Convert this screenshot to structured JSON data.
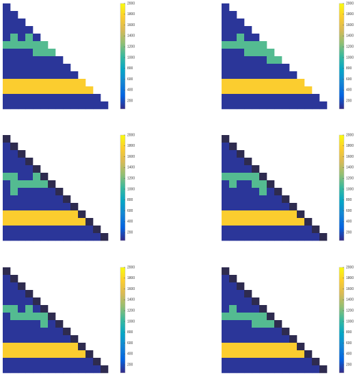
{
  "chart_data": [
    {
      "type": "heatmap",
      "clim": [
        50,
        2000
      ],
      "colorbar_ticks": [
        200,
        400,
        600,
        800,
        1000,
        1200,
        1400,
        1600,
        1800,
        2000
      ],
      "colormap": [
        "#352a87",
        "#0363e1",
        "#1485d4",
        "#06a7c6",
        "#38b99e",
        "#92bf73",
        "#d9ba56",
        "#fcce2e",
        "#f9fb0e"
      ],
      "values": [
        [
          100
        ],
        [
          100,
          100
        ],
        [
          100,
          100,
          100
        ],
        [
          100,
          100,
          100,
          100
        ],
        [
          100,
          1100,
          100,
          1100,
          100
        ],
        [
          1100,
          1100,
          1100,
          1100,
          1100,
          1100
        ],
        [
          100,
          100,
          100,
          100,
          1100,
          1100,
          1100
        ],
        [
          100,
          100,
          100,
          100,
          100,
          100,
          100,
          100
        ],
        [
          100,
          100,
          100,
          100,
          100,
          100,
          100,
          100,
          100
        ],
        [
          100,
          100,
          100,
          100,
          100,
          100,
          100,
          100,
          100,
          100
        ],
        [
          1750,
          1750,
          1750,
          1750,
          1750,
          1750,
          1750,
          1750,
          1750,
          1750,
          1750
        ],
        [
          1750,
          1750,
          1750,
          1750,
          1750,
          1750,
          1750,
          1750,
          1750,
          1750,
          1750,
          1750
        ],
        [
          100,
          100,
          100,
          100,
          100,
          100,
          100,
          100,
          100,
          100,
          100,
          100,
          100
        ],
        [
          100,
          100,
          100,
          100,
          100,
          100,
          100,
          100,
          100,
          100,
          100,
          100,
          100,
          100
        ]
      ]
    },
    {
      "type": "heatmap",
      "clim": [
        50,
        2000
      ],
      "colorbar_ticks": [
        200,
        400,
        600,
        800,
        1000,
        1200,
        1400,
        1600,
        1800,
        2000
      ],
      "colormap": [
        "#352a87",
        "#0363e1",
        "#1485d4",
        "#06a7c6",
        "#38b99e",
        "#92bf73",
        "#d9ba56",
        "#fcce2e",
        "#f9fb0e"
      ],
      "values": [
        [
          100
        ],
        [
          100,
          100
        ],
        [
          100,
          100,
          100
        ],
        [
          100,
          100,
          100,
          100
        ],
        [
          100,
          100,
          1100,
          100,
          100
        ],
        [
          1100,
          1100,
          1100,
          1100,
          1100,
          1100
        ],
        [
          100,
          100,
          100,
          1100,
          1100,
          1100,
          1100
        ],
        [
          100,
          100,
          100,
          100,
          100,
          100,
          1100,
          1100
        ],
        [
          100,
          100,
          100,
          100,
          100,
          100,
          100,
          100,
          100
        ],
        [
          100,
          100,
          100,
          100,
          100,
          100,
          100,
          100,
          100,
          100
        ],
        [
          1750,
          1750,
          1750,
          1750,
          1750,
          1750,
          1750,
          1750,
          1750,
          1750,
          1750
        ],
        [
          1750,
          1750,
          1750,
          1750,
          1750,
          1750,
          1750,
          1750,
          1750,
          1750,
          1750,
          1750
        ],
        [
          100,
          100,
          100,
          100,
          100,
          100,
          100,
          100,
          100,
          100,
          100,
          100,
          100
        ],
        [
          100,
          100,
          100,
          100,
          100,
          100,
          100,
          100,
          100,
          100,
          100,
          100,
          100,
          100
        ]
      ]
    },
    {
      "type": "heatmap",
      "clim": [
        50,
        2000
      ],
      "colorbar_ticks": [
        200,
        400,
        600,
        800,
        1000,
        1200,
        1400,
        1600,
        1800,
        2000
      ],
      "colormap": [
        "#352a87",
        "#0363e1",
        "#1485d4",
        "#06a7c6",
        "#38b99e",
        "#92bf73",
        "#d9ba56",
        "#fcce2e",
        "#f9fb0e"
      ],
      "under_color": "#2e2b4f",
      "values": [
        [
          0
        ],
        [
          100,
          0
        ],
        [
          100,
          100,
          0
        ],
        [
          100,
          100,
          100,
          0
        ],
        [
          100,
          100,
          100,
          100,
          0
        ],
        [
          1100,
          1100,
          100,
          100,
          1100,
          0
        ],
        [
          100,
          1100,
          1100,
          1100,
          1100,
          1100,
          0
        ],
        [
          100,
          1100,
          100,
          100,
          100,
          100,
          100,
          0
        ],
        [
          100,
          100,
          100,
          100,
          100,
          100,
          100,
          100,
          0
        ],
        [
          100,
          100,
          100,
          100,
          100,
          100,
          100,
          100,
          100,
          0
        ],
        [
          1750,
          1750,
          1750,
          1750,
          1750,
          1750,
          1750,
          1750,
          1750,
          1750,
          0
        ],
        [
          1750,
          1750,
          1750,
          1750,
          1750,
          1750,
          1750,
          1750,
          1750,
          1750,
          1750,
          0
        ],
        [
          100,
          100,
          100,
          100,
          100,
          100,
          100,
          100,
          100,
          100,
          100,
          100,
          0
        ],
        [
          100,
          100,
          100,
          100,
          100,
          100,
          100,
          100,
          100,
          100,
          100,
          100,
          100,
          0
        ]
      ]
    },
    {
      "type": "heatmap",
      "clim": [
        50,
        2000
      ],
      "colorbar_ticks": [
        200,
        400,
        600,
        800,
        1000,
        1200,
        1400,
        1600,
        1800,
        2000
      ],
      "colormap": [
        "#352a87",
        "#0363e1",
        "#1485d4",
        "#06a7c6",
        "#38b99e",
        "#92bf73",
        "#d9ba56",
        "#fcce2e",
        "#f9fb0e"
      ],
      "under_color": "#2e2b4f",
      "values": [
        [
          0
        ],
        [
          100,
          0
        ],
        [
          100,
          100,
          0
        ],
        [
          100,
          100,
          100,
          0
        ],
        [
          100,
          100,
          100,
          100,
          0
        ],
        [
          1100,
          1100,
          1100,
          1100,
          1100,
          0
        ],
        [
          100,
          1100,
          100,
          100,
          1100,
          1100,
          0
        ],
        [
          100,
          100,
          100,
          100,
          100,
          1100,
          100,
          0
        ],
        [
          100,
          100,
          100,
          100,
          100,
          100,
          100,
          100,
          0
        ],
        [
          100,
          100,
          100,
          100,
          100,
          100,
          100,
          100,
          100,
          0
        ],
        [
          1750,
          1750,
          1750,
          1750,
          1750,
          1750,
          1750,
          1750,
          1750,
          1750,
          0
        ],
        [
          1750,
          1750,
          1750,
          1750,
          1750,
          1750,
          1750,
          1750,
          1750,
          1750,
          1750,
          0
        ],
        [
          100,
          100,
          100,
          100,
          100,
          100,
          100,
          100,
          100,
          100,
          100,
          100,
          0
        ],
        [
          100,
          100,
          100,
          100,
          100,
          100,
          100,
          100,
          100,
          100,
          100,
          100,
          100,
          0
        ]
      ]
    },
    {
      "type": "heatmap",
      "clim": [
        50,
        2000
      ],
      "colorbar_ticks": [
        200,
        400,
        600,
        800,
        1000,
        1200,
        1400,
        1600,
        1800,
        2000
      ],
      "colormap": [
        "#352a87",
        "#0363e1",
        "#1485d4",
        "#06a7c6",
        "#38b99e",
        "#92bf73",
        "#d9ba56",
        "#fcce2e",
        "#f9fb0e"
      ],
      "under_color": "#2e2b4f",
      "values": [
        [
          0
        ],
        [
          100,
          0
        ],
        [
          100,
          100,
          0
        ],
        [
          100,
          100,
          100,
          0
        ],
        [
          100,
          100,
          100,
          100,
          0
        ],
        [
          1100,
          1100,
          100,
          1100,
          100,
          0
        ],
        [
          100,
          1100,
          1100,
          1100,
          1100,
          1100,
          0
        ],
        [
          100,
          100,
          100,
          100,
          100,
          1100,
          100,
          0
        ],
        [
          100,
          100,
          100,
          100,
          100,
          100,
          100,
          100,
          0
        ],
        [
          100,
          100,
          100,
          100,
          100,
          100,
          100,
          100,
          100,
          0
        ],
        [
          1750,
          1750,
          1750,
          1750,
          1750,
          1750,
          1750,
          1750,
          1750,
          1750,
          0
        ],
        [
          1750,
          1750,
          1750,
          1750,
          1750,
          1750,
          1750,
          1750,
          1750,
          1750,
          1750,
          0
        ],
        [
          100,
          100,
          100,
          100,
          100,
          100,
          100,
          100,
          100,
          100,
          100,
          100,
          0
        ],
        [
          100,
          100,
          100,
          100,
          100,
          100,
          100,
          100,
          100,
          100,
          100,
          100,
          100,
          0
        ]
      ]
    },
    {
      "type": "heatmap",
      "clim": [
        50,
        2000
      ],
      "colorbar_ticks": [
        200,
        400,
        600,
        800,
        1000,
        1200,
        1400,
        1600,
        1800,
        2000
      ],
      "colormap": [
        "#352a87",
        "#0363e1",
        "#1485d4",
        "#06a7c6",
        "#38b99e",
        "#92bf73",
        "#d9ba56",
        "#fcce2e",
        "#f9fb0e"
      ],
      "under_color": "#2e2b4f",
      "values": [
        [
          0
        ],
        [
          100,
          0
        ],
        [
          100,
          100,
          0
        ],
        [
          100,
          100,
          100,
          0
        ],
        [
          100,
          100,
          100,
          100,
          0
        ],
        [
          100,
          1100,
          100,
          100,
          100,
          0
        ],
        [
          1100,
          1100,
          1100,
          1100,
          1100,
          1100,
          0
        ],
        [
          100,
          100,
          100,
          100,
          1100,
          1100,
          1100,
          0
        ],
        [
          100,
          100,
          100,
          100,
          100,
          100,
          100,
          100,
          0
        ],
        [
          100,
          100,
          100,
          100,
          100,
          100,
          100,
          100,
          100,
          0
        ],
        [
          1750,
          1750,
          1750,
          1750,
          1750,
          1750,
          1750,
          1750,
          1750,
          1750,
          0
        ],
        [
          1750,
          1750,
          1750,
          1750,
          1750,
          1750,
          1750,
          1750,
          1750,
          1750,
          1750,
          0
        ],
        [
          100,
          100,
          100,
          100,
          100,
          100,
          100,
          100,
          100,
          100,
          100,
          100,
          0
        ],
        [
          100,
          100,
          100,
          100,
          100,
          100,
          100,
          100,
          100,
          100,
          100,
          100,
          100,
          0
        ]
      ]
    }
  ]
}
